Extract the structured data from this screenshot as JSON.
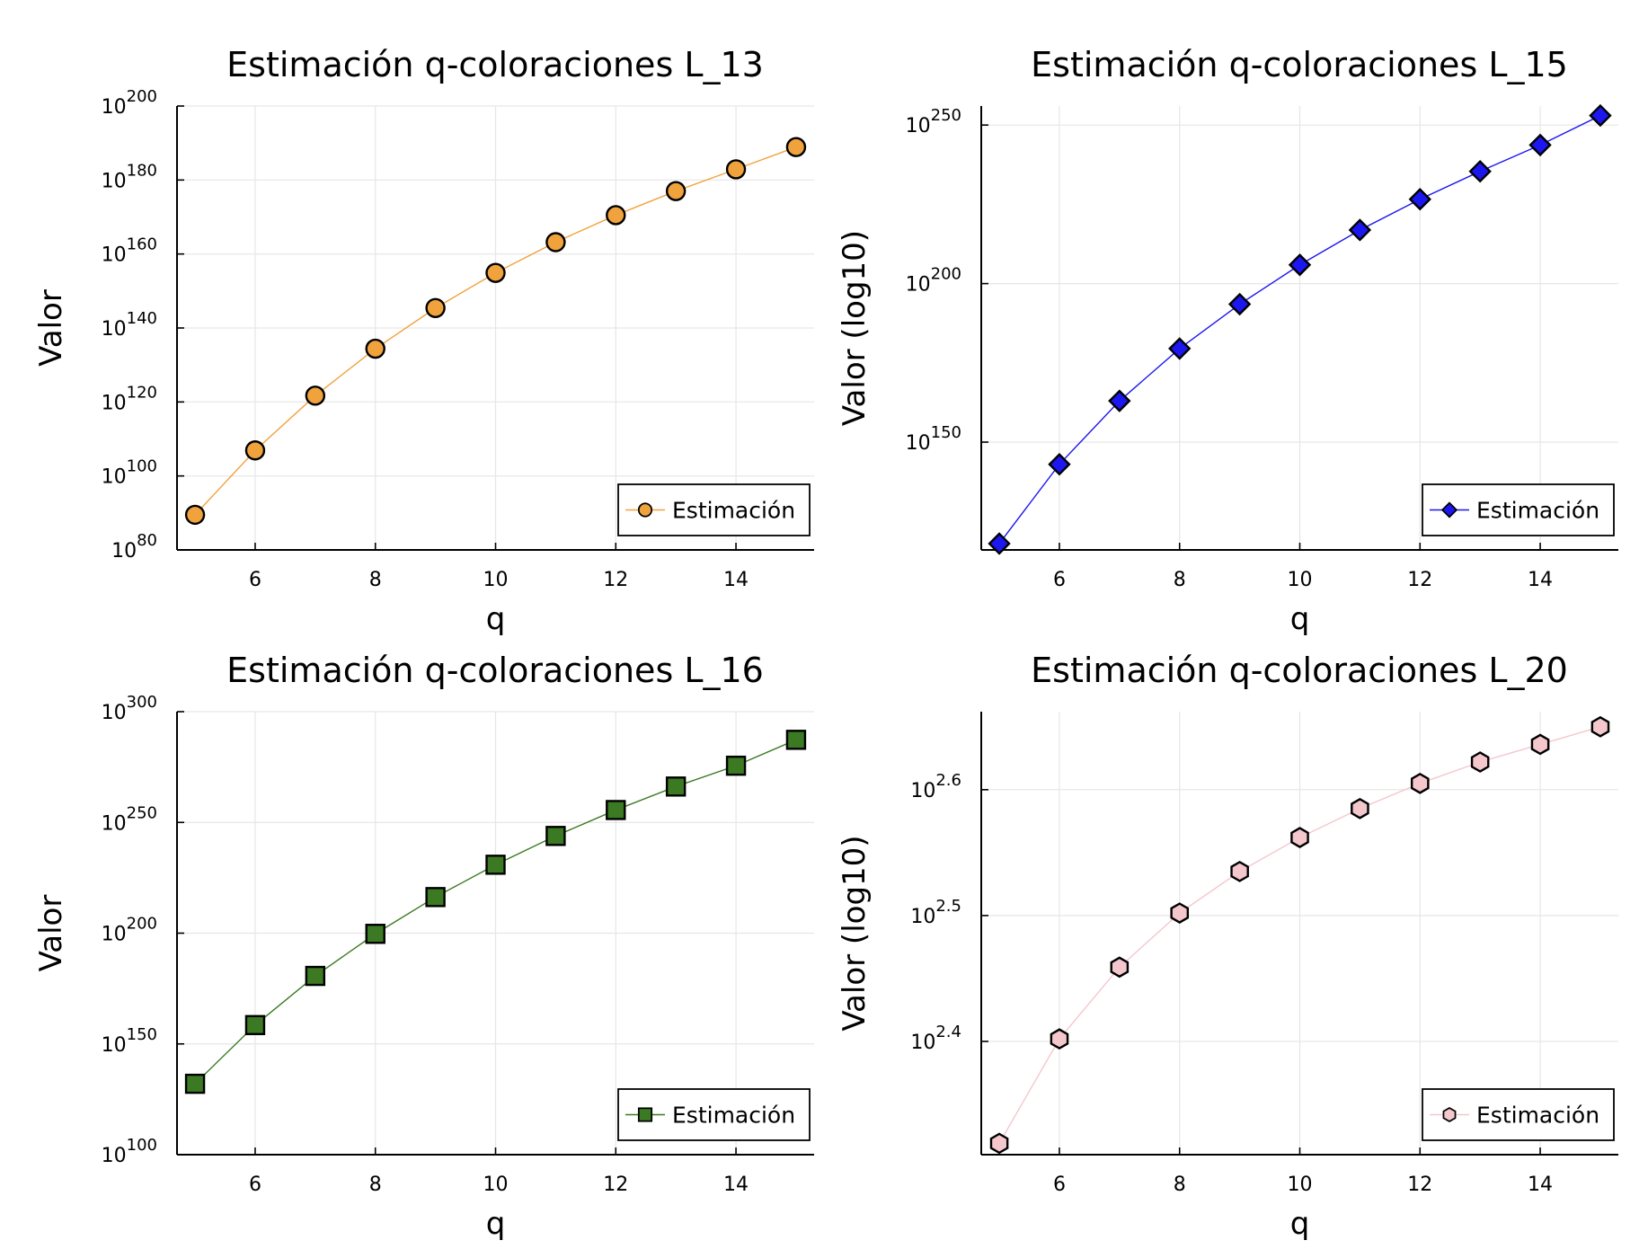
{
  "chart_data": [
    {
      "type": "line",
      "title": "Estimación q-coloraciones L_13",
      "xlabel": "q",
      "ylabel": "Valor",
      "yscale": "log10",
      "x": [
        5,
        6,
        7,
        8,
        9,
        10,
        11,
        12,
        13,
        14,
        15
      ],
      "series": [
        {
          "name": "Estimación",
          "color": "#f0a33c",
          "marker": "circle",
          "values_log10": [
            89.5,
            106.9,
            121.7,
            134.4,
            145.4,
            154.9,
            163.2,
            170.5,
            177.0,
            182.9,
            188.9
          ]
        }
      ],
      "xlim": [
        4.7,
        15.3
      ],
      "ylim_log10": [
        80,
        200
      ],
      "xticks": [
        6,
        8,
        10,
        12,
        14
      ],
      "xtick_labels": [
        "6",
        "8",
        "10",
        "12",
        "14"
      ],
      "yticks_log10": [
        80,
        100,
        120,
        140,
        160,
        180,
        200
      ],
      "ytick_base": "10",
      "ytick_exponents": [
        "80",
        "100",
        "120",
        "140",
        "160",
        "180",
        "200"
      ],
      "legend": {
        "position": "bottom-right",
        "entries": [
          "Estimación"
        ]
      },
      "grid": true
    },
    {
      "type": "line",
      "title": "Estimación q-coloraciones L_15",
      "xlabel": "q",
      "ylabel": "Valor (log10)",
      "yscale": "log10",
      "x": [
        5,
        6,
        7,
        8,
        9,
        10,
        11,
        12,
        13,
        14,
        15
      ],
      "series": [
        {
          "name": "Estimación",
          "color": "#1c17ee",
          "marker": "diamond",
          "values_log10": [
            118.0,
            143.0,
            163.0,
            179.5,
            193.5,
            205.9,
            216.9,
            226.6,
            235.4,
            243.7,
            253.0
          ]
        }
      ],
      "xlim": [
        4.7,
        15.3
      ],
      "ylim_log10": [
        116,
        256
      ],
      "xticks": [
        6,
        8,
        10,
        12,
        14
      ],
      "xtick_labels": [
        "6",
        "8",
        "10",
        "12",
        "14"
      ],
      "yticks_log10": [
        150,
        200,
        250
      ],
      "ytick_base": "10",
      "ytick_exponents": [
        "150",
        "200",
        "250"
      ],
      "legend": {
        "position": "bottom-right",
        "entries": [
          "Estimación"
        ]
      },
      "grid": true
    },
    {
      "type": "line",
      "title": "Estimación q-coloraciones L_16",
      "xlabel": "q",
      "ylabel": "Valor",
      "yscale": "log10",
      "x": [
        5,
        6,
        7,
        8,
        9,
        10,
        11,
        12,
        13,
        14,
        15
      ],
      "series": [
        {
          "name": "Estimación",
          "color": "#3b7a22",
          "marker": "square",
          "values_log10": [
            132.0,
            158.5,
            180.7,
            199.7,
            216.3,
            230.9,
            243.9,
            255.6,
            266.2,
            275.6,
            287.3
          ]
        }
      ],
      "xlim": [
        4.7,
        15.3
      ],
      "ylim_log10": [
        100,
        300
      ],
      "xticks": [
        6,
        8,
        10,
        12,
        14
      ],
      "xtick_labels": [
        "6",
        "8",
        "10",
        "12",
        "14"
      ],
      "yticks_log10": [
        100,
        150,
        200,
        250,
        300
      ],
      "ytick_base": "10",
      "ytick_exponents": [
        "100",
        "150",
        "200",
        "250",
        "300"
      ],
      "legend": {
        "position": "bottom-right",
        "entries": [
          "Estimación"
        ]
      },
      "grid": true
    },
    {
      "type": "line",
      "title": "Estimación q-coloraciones L_20",
      "xlabel": "q",
      "ylabel": "Valor (log10)",
      "yscale": "log10",
      "x": [
        5,
        6,
        7,
        8,
        9,
        10,
        11,
        12,
        13,
        14,
        15
      ],
      "series": [
        {
          "name": "Estimación",
          "color": "#f4c7cd",
          "marker": "hexagon",
          "values_log10": [
            2.319,
            2.402,
            2.459,
            2.502,
            2.535,
            2.562,
            2.585,
            2.605,
            2.622,
            2.636,
            2.65
          ]
        }
      ],
      "xlim": [
        4.7,
        15.3
      ],
      "ylim_log10": [
        2.31,
        2.662
      ],
      "xticks": [
        6,
        8,
        10,
        12,
        14
      ],
      "xtick_labels": [
        "6",
        "8",
        "10",
        "12",
        "14"
      ],
      "yticks_log10": [
        2.4,
        2.5,
        2.6
      ],
      "ytick_base": "10",
      "ytick_exponents": [
        "2.4",
        "2.5",
        "2.6"
      ],
      "legend": {
        "position": "bottom-right",
        "entries": [
          "Estimación"
        ]
      },
      "grid": true
    }
  ]
}
